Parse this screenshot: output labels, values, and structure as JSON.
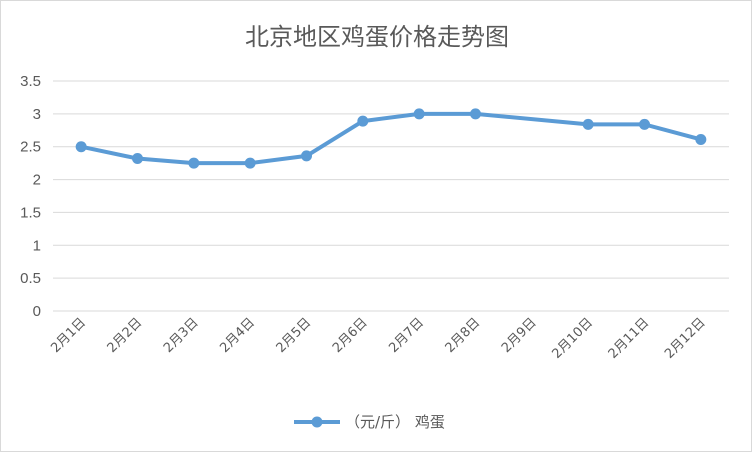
{
  "chart_data": {
    "type": "line",
    "title": "北京地区鸡蛋价格走势图",
    "xlabel": "",
    "ylabel": "",
    "ylim": [
      0,
      3.5
    ],
    "yticks": [
      "0",
      "0.5",
      "1",
      "1.5",
      "2",
      "2.5",
      "3",
      "3.5"
    ],
    "categories": [
      "2月1日",
      "2月2日",
      "2月3日",
      "2月4日",
      "2月5日",
      "2月6日",
      "2月7日",
      "2月8日",
      "2月9日",
      "2月10日",
      "2月11日",
      "2月12日"
    ],
    "series": [
      {
        "name": "（元/斤） 鸡蛋",
        "values": [
          2.5,
          2.32,
          2.25,
          2.25,
          2.36,
          2.89,
          3.0,
          3.0,
          null,
          2.84,
          2.84,
          2.61
        ],
        "color": "#5b9bd5"
      }
    ],
    "grid": true,
    "legend": "bottom"
  }
}
